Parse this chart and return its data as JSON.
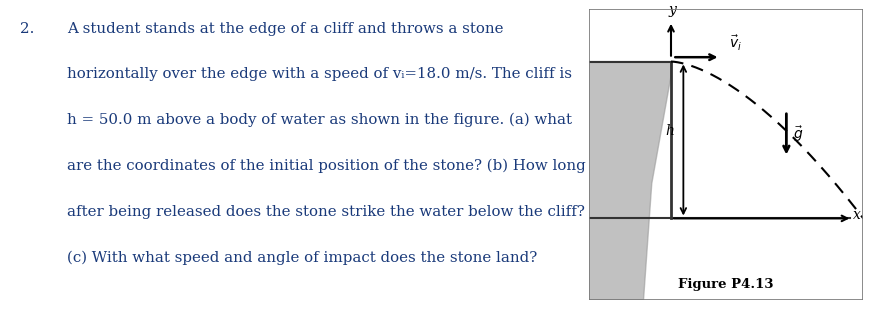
{
  "problem_number": "2.",
  "line1": "A student stands at the edge of a cliff and throws a stone",
  "line2": "horizontally over the edge with a speed of vᵢ=18.0 m/s. The cliff is",
  "line3": "h = 50.0 m above a body of water as shown in the figure. (a) what",
  "line4": "are the coordinates of the initial position of the stone? (b) How long",
  "line5": "after being released does the stone strike the water below the cliff?",
  "line6": "(c) With what speed and angle of impact does the stone land?",
  "figure_caption": "Figure P4.13",
  "text_color": "#1a3a7a",
  "background_color": "#ffffff",
  "fig_bg_color": "#d4cfc5",
  "text_fontsize": 10.8,
  "caption_fontsize": 9.5
}
